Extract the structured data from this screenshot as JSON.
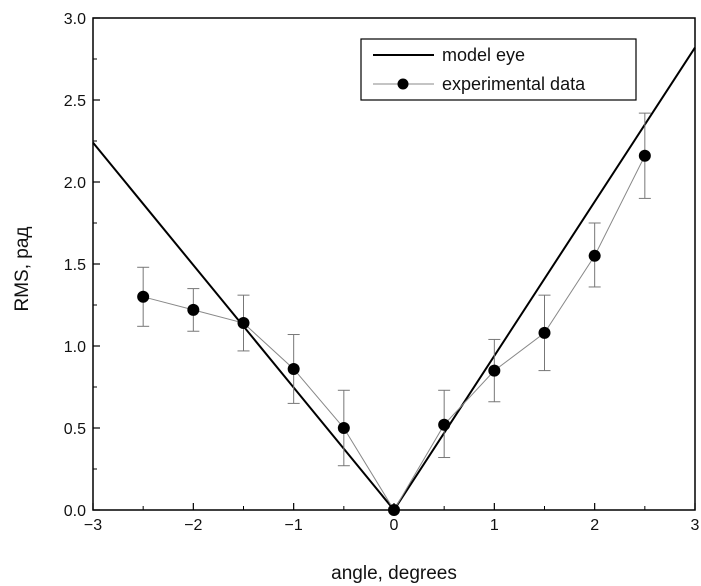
{
  "chart_data": {
    "type": "line",
    "xlabel": "angle, degrees",
    "ylabel": "RMS, рад",
    "xlim": [
      -3,
      3
    ],
    "ylim": [
      0,
      3.0
    ],
    "x_ticks": [
      -3,
      -2,
      -1,
      0,
      1,
      2,
      3
    ],
    "x_tick_labels": [
      "−3",
      "−2",
      "−1",
      "0",
      "1",
      "2",
      "3"
    ],
    "y_ticks": [
      0,
      0.5,
      1.0,
      1.5,
      2.0,
      2.5,
      3.0
    ],
    "y_tick_labels": [
      "0.0",
      "0.5",
      "1.0",
      "1.5",
      "2.0",
      "2.5",
      "3.0"
    ],
    "grid": false,
    "legend_position": "top-right",
    "series": [
      {
        "name": "model eye",
        "style": "line",
        "color": "#000000",
        "x": [
          -3,
          0,
          3
        ],
        "y": [
          2.24,
          0,
          2.82
        ]
      },
      {
        "name": "experimental data",
        "style": "line-markers-errorbars",
        "color": "#000000",
        "line_color": "#888888",
        "x": [
          -2.5,
          -2.0,
          -1.5,
          -1.0,
          -0.5,
          0,
          0.5,
          1.0,
          1.5,
          2.0,
          2.5
        ],
        "y": [
          1.3,
          1.22,
          1.14,
          0.86,
          0.5,
          0.0,
          0.52,
          0.85,
          1.08,
          1.55,
          2.16
        ],
        "err_low": [
          1.12,
          1.09,
          0.97,
          0.65,
          0.27,
          0.0,
          0.32,
          0.66,
          0.85,
          1.36,
          1.9
        ],
        "err_high": [
          1.48,
          1.35,
          1.31,
          1.07,
          0.73,
          0.0,
          0.73,
          1.04,
          1.31,
          1.75,
          2.42
        ]
      }
    ]
  }
}
